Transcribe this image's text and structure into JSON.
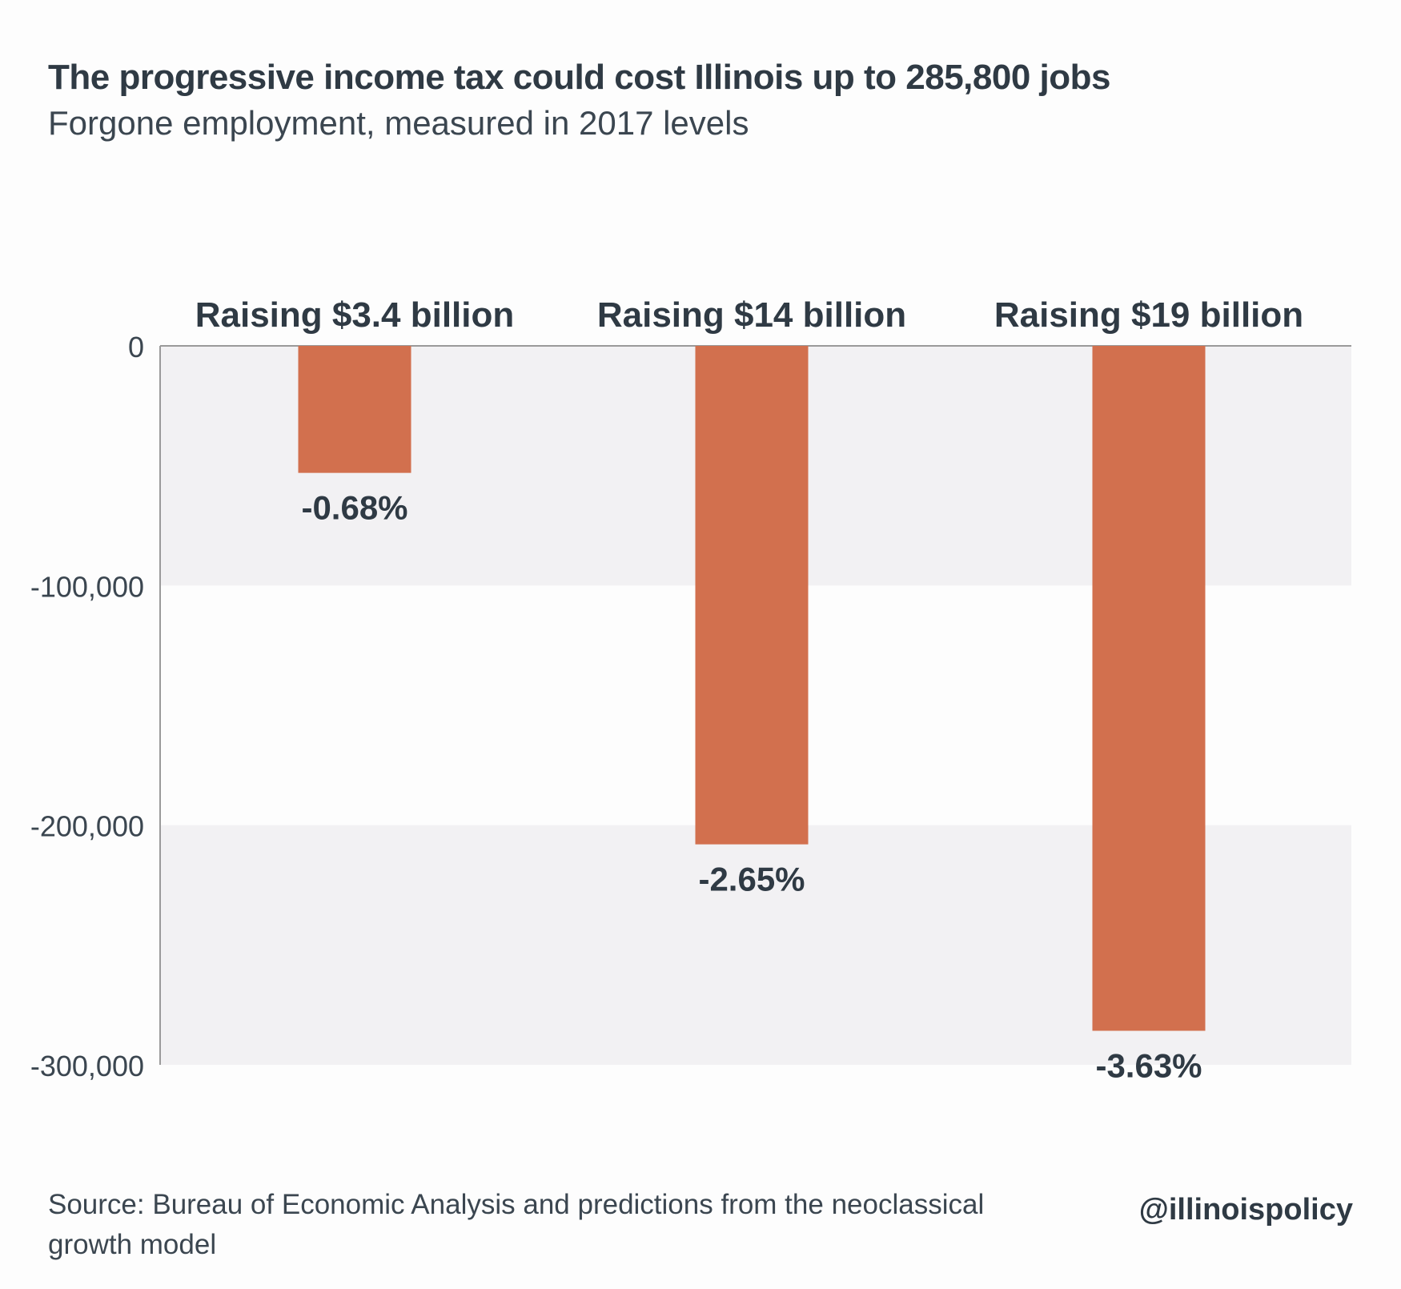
{
  "header": {
    "title": "The progressive income tax could cost Illinois up to 285,800 jobs",
    "subtitle": "Forgone employment, measured in 2017 levels"
  },
  "footer": {
    "source": "Source: Bureau of Economic Analysis and predictions from the neoclassical growth model",
    "handle": "@illinoispolicy"
  },
  "chart_data": {
    "type": "bar",
    "title": "The progressive income tax could cost Illinois up to 285,800 jobs",
    "subtitle": "Forgone employment, measured in 2017 levels",
    "categories": [
      "Raising $3.4 billion",
      "Raising $14 billion",
      "Raising $19 billion"
    ],
    "values": [
      -53000,
      -208000,
      -285800
    ],
    "data_labels": [
      "-0.68%",
      "-2.65%",
      "-3.63%"
    ],
    "xlabel": "",
    "ylabel": "",
    "ylim": [
      -300000,
      0
    ],
    "yticks": [
      0,
      -100000,
      -200000,
      -300000
    ],
    "ytick_labels": [
      "0",
      "-100,000",
      "-200,000",
      "-300,000"
    ],
    "category_labels_position": "top",
    "grid": "alternating bands",
    "legend": "none",
    "colors": {
      "bar": "#d2704e",
      "band": "#f2f1f3",
      "text": "#2f3a44",
      "axis": "#9a9a9a"
    }
  }
}
